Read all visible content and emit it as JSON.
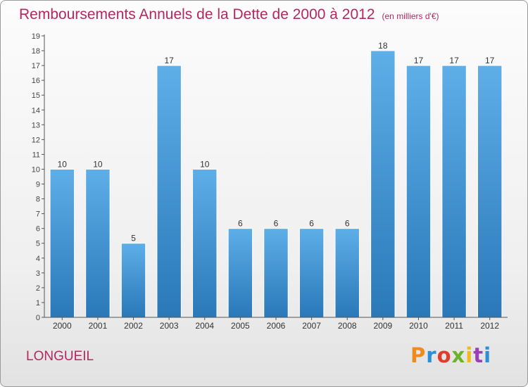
{
  "title": "Remboursements Annuels de la Dette de 2000 à 2012",
  "subtitle": "(en milliers d'€)",
  "commune": "LONGUEIL",
  "logo": "Proxiti",
  "logo_colors": [
    "#f08a1c",
    "#2a8fd6",
    "#e23b2b",
    "#6cb32a",
    "#f2b81d",
    "#9a3fb5",
    "#2a8fd6"
  ],
  "colors": {
    "accent": "#b5275f",
    "bar_top": "#5eaee8",
    "bar_bottom": "#2a78b8",
    "axis": "#555555",
    "grid": "#cccccc"
  },
  "chart_data": {
    "type": "bar",
    "categories": [
      "2000",
      "2001",
      "2002",
      "2003",
      "2004",
      "2005",
      "2006",
      "2007",
      "2008",
      "2009",
      "2010",
      "2011",
      "2012"
    ],
    "values": [
      10,
      10,
      5,
      17,
      10,
      6,
      6,
      6,
      6,
      18,
      17,
      17,
      17
    ],
    "ylim": [
      0,
      19
    ],
    "yticks": [
      0,
      1,
      2,
      3,
      4,
      5,
      6,
      7,
      8,
      9,
      10,
      11,
      12,
      13,
      14,
      15,
      16,
      17,
      18,
      19
    ],
    "grid": false,
    "data_labels": true
  }
}
